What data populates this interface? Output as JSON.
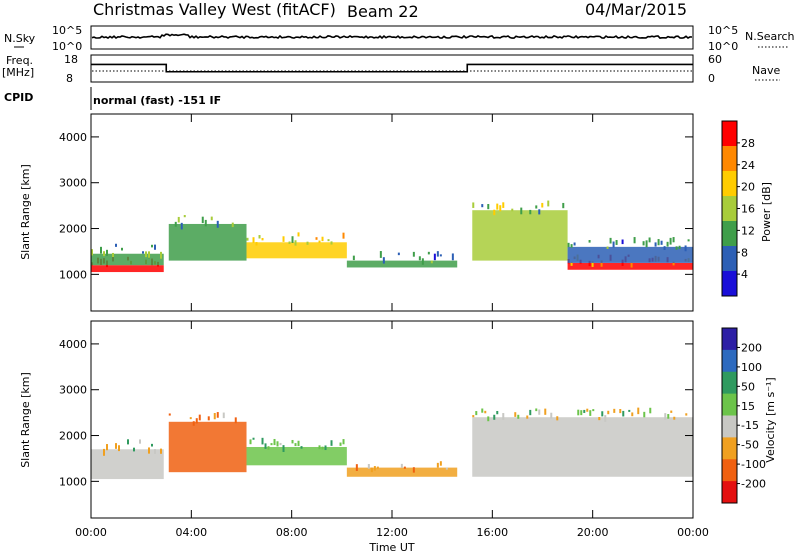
{
  "header": {
    "station": "Christmas Valley West (fitACF)",
    "beam": "Beam 22",
    "date": "04/Mar/2015"
  },
  "sky_panel": {
    "label": "N.Sky",
    "left_ticks": [
      "10^5",
      "10^0"
    ],
    "right_label": "N.Search",
    "right_ticks": [
      "10^5",
      "10^0"
    ]
  },
  "freq_panel": {
    "label_line1": "Freq.",
    "label_line2": "[MHz]",
    "left_ticks": [
      "18",
      "8"
    ],
    "right_label": "Nave",
    "right_ticks": [
      "60",
      "0"
    ]
  },
  "cpid": {
    "label": "CPID",
    "value": "normal (fast) -151 IF"
  },
  "power_panel": {
    "ylabel": "Slant Range [km]",
    "colorbar_label": "Power [dB]",
    "colorbar_ticks": [
      "28",
      "24",
      "20",
      "16",
      "12",
      "8",
      "4"
    ]
  },
  "velocity_panel": {
    "ylabel": "Slant Range [km]",
    "colorbar_label": "Velocity [m s⁻¹]",
    "colorbar_ticks": [
      "200",
      "100",
      "50",
      "15",
      "-15",
      "-50",
      "-100",
      "-200"
    ]
  },
  "xaxis": {
    "label": "Time UT",
    "ticks": [
      "00:00",
      "04:00",
      "08:00",
      "12:00",
      "16:00",
      "20:00",
      "00:00"
    ]
  },
  "colors": {
    "power_scale": [
      "#ff0000",
      "#ff8800",
      "#ffcc00",
      "#a8cc3a",
      "#3f9e4a",
      "#2c5fb5",
      "#1a0fd8"
    ],
    "velocity_scale": [
      "#2d1fa5",
      "#2d6abf",
      "#2f9a5f",
      "#6cc44a",
      "#c8c8c4",
      "#f0a020",
      "#f06010",
      "#e41010"
    ]
  },
  "chart_data": [
    {
      "type": "heatmap",
      "name": "power",
      "xlabel": "Time UT",
      "ylabel": "Slant Range [km]",
      "xlim": [
        0,
        24
      ],
      "ylim": [
        200,
        4500
      ],
      "yticks": [
        1000,
        2000,
        3000,
        4000
      ],
      "zlim": [
        0,
        30
      ],
      "bands": [
        {
          "x": [
            0.0,
            2.9
          ],
          "range_km": [
            1050,
            1200
          ],
          "power_db": 28
        },
        {
          "x": [
            0.0,
            2.9
          ],
          "range_km": [
            1200,
            1450
          ],
          "power_db": 12
        },
        {
          "x": [
            3.1,
            6.2
          ],
          "range_km": [
            1300,
            2100
          ],
          "power_db": 12
        },
        {
          "x": [
            6.2,
            10.2
          ],
          "range_km": [
            1350,
            1700
          ],
          "power_db": 18
        },
        {
          "x": [
            10.2,
            14.6
          ],
          "range_km": [
            1150,
            1300
          ],
          "power_db": 10
        },
        {
          "x": [
            15.2,
            19.0
          ],
          "range_km": [
            1300,
            2400
          ],
          "power_db": 14
        },
        {
          "x": [
            19.0,
            24.0
          ],
          "range_km": [
            1100,
            1250
          ],
          "power_db": 26
        },
        {
          "x": [
            19.0,
            24.0
          ],
          "range_km": [
            1250,
            1600
          ],
          "power_db": 8
        }
      ]
    },
    {
      "type": "heatmap",
      "name": "velocity",
      "xlabel": "Time UT",
      "ylabel": "Slant Range [km]",
      "xlim": [
        0,
        24
      ],
      "ylim": [
        200,
        4500
      ],
      "yticks": [
        1000,
        2000,
        3000,
        4000
      ],
      "zlim": [
        -200,
        200
      ],
      "bands": [
        {
          "x": [
            0.0,
            2.9
          ],
          "range_km": [
            1050,
            1700
          ],
          "velocity_ms": 0
        },
        {
          "x": [
            3.1,
            6.2
          ],
          "range_km": [
            1200,
            2300
          ],
          "velocity_ms": -50
        },
        {
          "x": [
            6.2,
            10.2
          ],
          "range_km": [
            1350,
            1750
          ],
          "velocity_ms": 30
        },
        {
          "x": [
            10.2,
            14.6
          ],
          "range_km": [
            1100,
            1300
          ],
          "velocity_ms": -30
        },
        {
          "x": [
            15.2,
            24.0
          ],
          "range_km": [
            1100,
            2400
          ],
          "velocity_ms": 0
        }
      ]
    },
    {
      "type": "line",
      "name": "frequency",
      "ylabel": "Freq. [MHz]",
      "x": [
        0,
        3.0,
        3.0,
        15.0,
        15.0,
        24
      ],
      "y": [
        14.5,
        14.5,
        11.8,
        11.8,
        14.5,
        14.5
      ]
    }
  ]
}
